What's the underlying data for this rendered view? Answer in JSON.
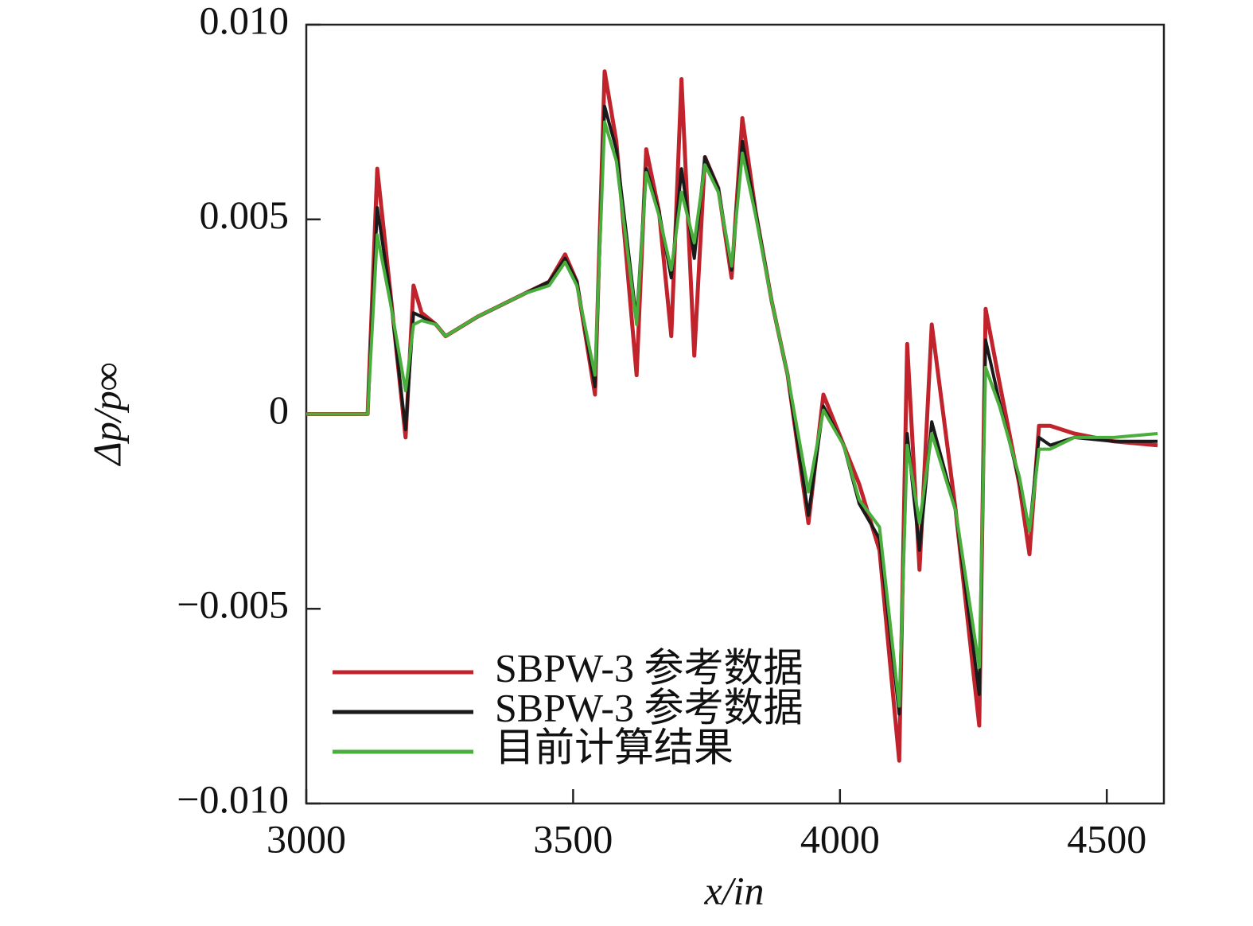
{
  "chart_data": {
    "type": "line",
    "xlabel": "x/in",
    "ylabel": "Δp/p∞",
    "x": [
      3000,
      3115,
      3133,
      3157,
      3186,
      3201,
      3216,
      3243,
      3261,
      3321,
      3410,
      3455,
      3485,
      3507,
      3541,
      3559,
      3581,
      3619,
      3637,
      3661,
      3684,
      3703,
      3727,
      3747,
      3772,
      3797,
      3817,
      3842,
      3872,
      3902,
      3941,
      3969,
      4007,
      4036,
      4074,
      4111,
      4126,
      4149,
      4172,
      4217,
      4261,
      4273,
      4299,
      4336,
      4355,
      4373,
      4394,
      4439,
      4513,
      4595
    ],
    "series": [
      {
        "name": "SBPW-3 参考数据",
        "color": "#c0232b",
        "values": [
          0,
          0,
          0.0063,
          0.0032,
          -0.0006,
          0.0033,
          0.0026,
          0.0023,
          0.002,
          0.0025,
          0.0031,
          0.0034,
          0.0041,
          0.0034,
          0.0005,
          0.0088,
          0.007,
          0.001,
          0.0068,
          0.0052,
          0.002,
          0.0086,
          0.0015,
          0.0066,
          0.0058,
          0.0035,
          0.0076,
          0.0052,
          0.0029,
          0.001,
          -0.0028,
          0.0005,
          -0.0008,
          -0.0018,
          -0.0035,
          -0.0089,
          0.0018,
          -0.004,
          0.0023,
          -0.0025,
          -0.008,
          0.0027,
          0.0008,
          -0.0018,
          -0.0036,
          -0.0003,
          -0.0003,
          -0.0005,
          -0.0007,
          -0.0008
        ]
      },
      {
        "name": "SBPW-3 参考数据",
        "color": "#1a1a1a",
        "values": [
          0,
          0,
          0.0053,
          0.0031,
          -0.0004,
          0.0026,
          0.0025,
          0.0023,
          0.002,
          0.0025,
          0.0031,
          0.0034,
          0.004,
          0.0034,
          0.0007,
          0.0079,
          0.0068,
          0.0024,
          0.0063,
          0.0052,
          0.0035,
          0.0063,
          0.004,
          0.0066,
          0.0058,
          0.0037,
          0.007,
          0.0052,
          0.0029,
          0.001,
          -0.0026,
          0.0002,
          -0.0008,
          -0.0023,
          -0.0032,
          -0.0077,
          -0.0005,
          -0.0035,
          -0.0002,
          -0.0025,
          -0.0072,
          0.0019,
          0.0003,
          -0.0017,
          -0.003,
          -0.0006,
          -0.0008,
          -0.0006,
          -0.0007,
          -0.0007
        ]
      },
      {
        "name": "目前计算结果",
        "color": "#4aae3c",
        "values": [
          0,
          0,
          0.0046,
          0.0029,
          0.0006,
          0.0023,
          0.0024,
          0.0023,
          0.002,
          0.0025,
          0.0031,
          0.0033,
          0.0039,
          0.0033,
          0.001,
          0.0075,
          0.0065,
          0.0023,
          0.0062,
          0.0051,
          0.0037,
          0.0057,
          0.0044,
          0.0064,
          0.0057,
          0.0038,
          0.0067,
          0.0051,
          0.0029,
          0.001,
          -0.002,
          0.0001,
          -0.0008,
          -0.0022,
          -0.0029,
          -0.0075,
          -0.0008,
          -0.0028,
          -0.0005,
          -0.0025,
          -0.0065,
          0.0012,
          0.0002,
          -0.0016,
          -0.003,
          -0.0009,
          -0.0009,
          -0.0006,
          -0.0006,
          -0.0005
        ]
      }
    ],
    "xlim": [
      3000,
      4607
    ],
    "ylim": [
      -0.01,
      0.01
    ],
    "xticks": [
      3000,
      3500,
      4000,
      4500
    ],
    "yticks": [
      {
        "value": -0.01,
        "label": "−0.010"
      },
      {
        "value": -0.005,
        "label": "−0.005"
      },
      0,
      {
        "value": 0.005,
        "label": "0.005"
      },
      {
        "value": 0.01,
        "label": "0.010"
      }
    ],
    "grid": false,
    "legend": "lower left"
  }
}
